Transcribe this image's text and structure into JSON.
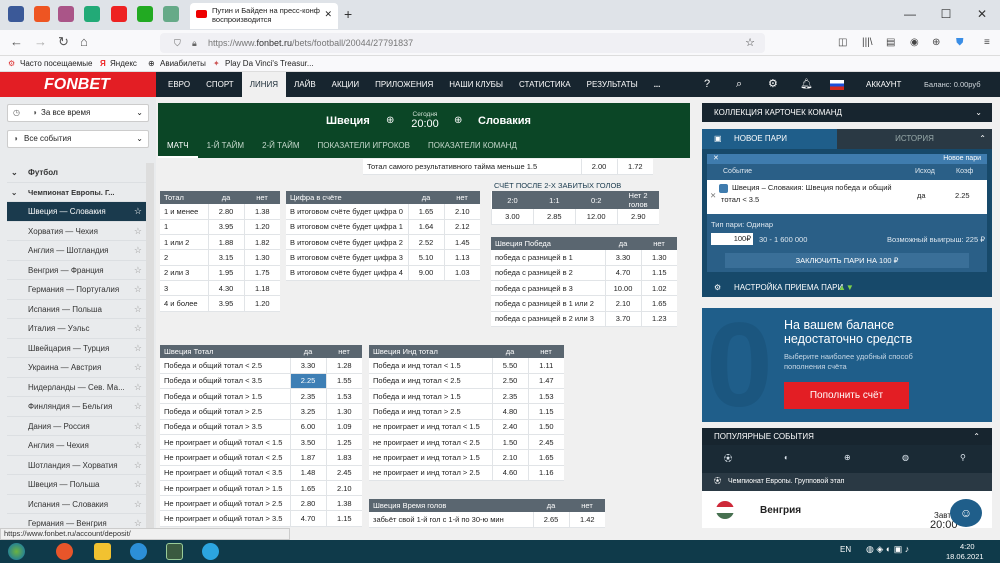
{
  "browser": {
    "active_tab_title": "Путин и Байден на пресс-конф воспроизводится",
    "url_dim": "https://www.",
    "url_main": "fonbet.ru",
    "url_rest": "/bets/football/20044/27791837",
    "bookmarks": [
      "Часто посещаемые",
      "Яндекс",
      "Авиабилеты",
      "Play Da Vinci's Treasur..."
    ]
  },
  "site": {
    "logo": "FONBET",
    "nav": [
      "ЕВРО",
      "СПОРТ",
      "ЛИНИЯ",
      "ЛАЙВ",
      "АКЦИИ",
      "ПРИЛОЖЕНИЯ",
      "НАШИ КЛУБЫ",
      "СТАТИСТИКА",
      "РЕЗУЛЬТАТЫ",
      "..."
    ],
    "account": "АККАУНТ",
    "balance": "Баланс: 0.00руб"
  },
  "sidebar": {
    "time_filter": "За все время",
    "events_filter": "Все события",
    "sport": "Футбол",
    "tournament": "Чемпионат Европы. Г...",
    "matches": [
      "Швеция — Словакия",
      "Хорватия — Чехия",
      "Англия — Шотландия",
      "Венгрия — Франция",
      "Германия — Португалия",
      "Испания — Польша",
      "Италия — Уэльс",
      "Швейцария — Турция",
      "Украина — Австрия",
      "Нидерланды — Сев. Ма...",
      "Финляндия — Бельгия",
      "Дания — Россия",
      "Англия — Чехия",
      "Шотландия — Хорватия",
      "Швеция — Польша",
      "Испания — Словакия",
      "Германия — Венгрия"
    ]
  },
  "match": {
    "home": "Швеция",
    "away": "Словакия",
    "day": "Сегодня",
    "time": "20:00",
    "tabs": [
      "МАТЧ",
      "1-Й ТАЙМ",
      "2-Й ТАЙМ",
      "ПОКАЗАТЕЛИ ИГРОКОВ",
      "ПОКАЗАТЕЛИ КОМАНД"
    ]
  },
  "top_row": {
    "label": "Тотал самого результативного тайма меньше 1.5",
    "a": "2.00",
    "b": "1.72"
  },
  "tables": {
    "total": {
      "headers": [
        "Тотал",
        "да",
        "нет"
      ],
      "rows": [
        [
          "1 и менее",
          "2.80",
          "1.38"
        ],
        [
          "1",
          "3.95",
          "1.20"
        ],
        [
          "1 или 2",
          "1.88",
          "1.82"
        ],
        [
          "2",
          "3.15",
          "1.30"
        ],
        [
          "2 или 3",
          "1.95",
          "1.75"
        ],
        [
          "3",
          "4.30",
          "1.18"
        ],
        [
          "4 и более",
          "3.95",
          "1.20"
        ]
      ]
    },
    "digit": {
      "headers": [
        "Цифра в счёте",
        "да",
        "нет"
      ],
      "rows": [
        [
          "В итоговом счёте будет цифра 0",
          "1.65",
          "2.10"
        ],
        [
          "В итоговом счёте будет цифра 1",
          "1.64",
          "2.12"
        ],
        [
          "В итоговом счёте будет цифра 2",
          "2.52",
          "1.45"
        ],
        [
          "В итоговом счёте будет цифра 3",
          "5.10",
          "1.13"
        ],
        [
          "В итоговом счёте будет цифра 4",
          "9.00",
          "1.03"
        ]
      ]
    },
    "score_after2": {
      "title": "СЧЁТ ПОСЛЕ 2-Х ЗАБИТЫХ ГОЛОВ",
      "headers": [
        "2:0",
        "1:1",
        "0:2",
        "Нет 2 голов"
      ],
      "values": [
        "3.00",
        "2.85",
        "12.00",
        "2.90"
      ]
    },
    "sweden_win": {
      "headers": [
        "Швеция Победа",
        "да",
        "нет"
      ],
      "rows": [
        [
          "победа с разницей в 1",
          "3.30",
          "1.30"
        ],
        [
          "победа с разницей в 2",
          "4.70",
          "1.15"
        ],
        [
          "победа с разницей в 3",
          "10.00",
          "1.02"
        ],
        [
          "победа с разницей в 1 или 2",
          "2.10",
          "1.65"
        ],
        [
          "победа с разницей в 2 или 3",
          "3.70",
          "1.23"
        ]
      ]
    },
    "sweden_total": {
      "headers": [
        "Швеция Тотал",
        "да",
        "нет"
      ],
      "rows": [
        [
          "Победа и общий тотал < 2.5",
          "3.30",
          "1.28"
        ],
        [
          "Победа и общий тотал < 3.5",
          "2.25",
          "1.55"
        ],
        [
          "Победа и общий тотал > 1.5",
          "2.35",
          "1.53"
        ],
        [
          "Победа и общий тотал > 2.5",
          "3.25",
          "1.30"
        ],
        [
          "Победа и общий тотал > 3.5",
          "6.00",
          "1.09"
        ],
        [
          "Не проиграет и общий тотал < 1.5",
          "3.50",
          "1.25"
        ],
        [
          "Не проиграет и общий тотал < 2.5",
          "1.87",
          "1.83"
        ],
        [
          "Не проиграет и общий тотал < 3.5",
          "1.48",
          "2.45"
        ],
        [
          "Не проиграет и общий тотал > 1.5",
          "1.65",
          "2.10"
        ],
        [
          "Не проиграет и общий тотал > 2.5",
          "2.80",
          "1.38"
        ],
        [
          "Не проиграет и общий тотал > 3.5",
          "4.70",
          "1.15"
        ]
      ]
    },
    "sweden_ind": {
      "headers": [
        "Швеция Инд тотал",
        "да",
        "нет"
      ],
      "rows": [
        [
          "Победа и инд тотал < 1.5",
          "5.50",
          "1.11"
        ],
        [
          "Победа и инд тотал < 2.5",
          "2.50",
          "1.47"
        ],
        [
          "Победа и инд тотал > 1.5",
          "2.35",
          "1.53"
        ],
        [
          "Победа и инд тотал > 2.5",
          "4.80",
          "1.15"
        ],
        [
          "не проиграет и инд тотал < 1.5",
          "2.40",
          "1.50"
        ],
        [
          "не проиграет и инд тотал < 2.5",
          "1.50",
          "2.45"
        ],
        [
          "не проиграет и инд тотал > 1.5",
          "2.10",
          "1.65"
        ],
        [
          "не проиграет и инд тотал > 2.5",
          "4.60",
          "1.16"
        ]
      ]
    },
    "sweden_time": {
      "headers": [
        "Швеция Время голов",
        "да",
        "нет"
      ],
      "rows": [
        [
          "забьёт свой 1-й гол с 1-й по 30-ю мин",
          "2.65",
          "1.42"
        ]
      ]
    }
  },
  "right": {
    "collection": "КОЛЛЕКЦИЯ КАРТОЧЕК КОМАНД",
    "tab_new": "НОВОЕ ПАРИ",
    "tab_history": "ИСТОРИЯ",
    "slip_header": "Новое пари",
    "col_event": "Событие",
    "col_outcome": "Исход",
    "col_coef": "Коэф",
    "bet_event": "Швеция – Словакия: Швеция победа и общий тотал < 3.5",
    "bet_outcome": "да",
    "bet_coef": "2.25",
    "bet_type": "Тип пари: Одинар",
    "amount": "100",
    "currency": "₽",
    "range": "30 - 1 600 000",
    "possible_win": "Возможный выигрыш: 225 ₽",
    "submit": "ЗАКЛЮЧИТЬ ПАРИ НА 100 ₽",
    "settings": "НАСТРОЙКА ПРИЕМА ПАРИ",
    "balance_title": "На вашем балансе недостаточно средств",
    "balance_sub": "Выберите наиболее удобный способ пополнения счёта",
    "deposit": "Пополнить счёт",
    "popular": "ПОПУЛЯРНЫЕ СОБЫТИЯ",
    "popular_league": "Чемпионат Европы. Групповой этап",
    "popular_team": "Венгрия",
    "popular_day": "Завт",
    "popular_time": "20:00"
  },
  "status_url": "https://www.fonbet.ru/account/deposit/",
  "taskbar": {
    "lang": "EN",
    "time": "4:20",
    "date": "18.06.2021"
  }
}
